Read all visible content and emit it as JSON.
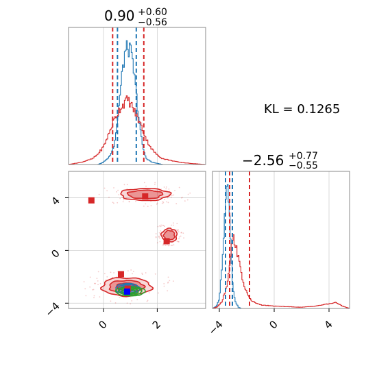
{
  "chart_data": {
    "type": "corner",
    "kl_text": "KL = 0.1265",
    "colors": {
      "red": "#d62728",
      "blue": "#1f77b4",
      "green": "#2ca02c",
      "grid": "#d0d0d0",
      "frame": "#888888"
    },
    "panels": [
      {
        "id": "hist-x",
        "type": "histogram",
        "title": {
          "value": "0.90",
          "plus": "+0.60",
          "minus": "−0.56"
        },
        "xlim": [
          -1.3,
          3.8
        ],
        "grid_x": [
          0,
          2
        ],
        "series": [
          {
            "name": "",
            "color": "#1f77b4",
            "x": [
              -1.3,
              -0.2,
              0.0,
              0.2,
              0.4,
              0.5,
              0.6,
              0.7,
              0.8,
              0.9,
              1.0,
              1.1,
              1.2,
              1.3,
              1.4,
              1.5,
              1.6,
              1.8,
              2.0,
              2.2,
              3.8
            ],
            "density": [
              0,
              0,
              0.02,
              0.06,
              0.16,
              0.33,
              0.55,
              0.78,
              0.95,
              1.0,
              0.96,
              0.84,
              0.64,
              0.42,
              0.24,
              0.11,
              0.05,
              0.02,
              0.01,
              0,
              0
            ]
          },
          {
            "name": "",
            "color": "#d62728",
            "x": [
              -1.3,
              -0.8,
              -0.4,
              -0.2,
              0.0,
              0.2,
              0.4,
              0.6,
              0.8,
              0.9,
              1.0,
              1.2,
              1.4,
              1.6,
              1.8,
              2.0,
              2.2,
              2.4,
              2.8,
              3.2,
              3.8
            ],
            "density": [
              0,
              0.02,
              0.05,
              0.09,
              0.15,
              0.26,
              0.38,
              0.47,
              0.53,
              0.55,
              0.52,
              0.43,
              0.33,
              0.21,
              0.13,
              0.08,
              0.05,
              0.04,
              0.02,
              0.01,
              0
            ]
          }
        ],
        "quantiles": {
          "blue": [
            0.52,
            1.22
          ],
          "red": [
            0.34,
            1.5
          ]
        }
      },
      {
        "id": "hist-y",
        "type": "histogram",
        "title": {
          "value": "−2.56",
          "plus": "+0.77",
          "minus": "−0.55"
        },
        "xlim": [
          -4.5,
          5.5
        ],
        "grid_x": [
          -4,
          0,
          4
        ],
        "ticks": [
          "−4",
          "0",
          "4"
        ],
        "series": [
          {
            "name": "",
            "color": "#1f77b4",
            "x": [
              -4.5,
              -4.2,
              -4.0,
              -3.8,
              -3.6,
              -3.5,
              -3.4,
              -3.3,
              -3.2,
              -3.1,
              -3.0,
              -2.8,
              -2.6,
              -2.4,
              5.5
            ],
            "density": [
              0,
              0.02,
              0.08,
              0.35,
              0.78,
              0.98,
              1.0,
              0.88,
              0.62,
              0.36,
              0.16,
              0.05,
              0.01,
              0,
              0
            ]
          },
          {
            "name": "",
            "color": "#d62728",
            "x": [
              -4.5,
              -4.2,
              -3.8,
              -3.4,
              -3.2,
              -3.0,
              -2.8,
              -2.6,
              -2.4,
              -2.2,
              -2.0,
              -1.6,
              -1.0,
              0.0,
              2.0,
              3.0,
              4.0,
              4.5,
              5.0,
              5.5
            ],
            "density": [
              0,
              0.01,
              0.06,
              0.22,
              0.45,
              0.6,
              0.55,
              0.42,
              0.3,
              0.2,
              0.13,
              0.06,
              0.03,
              0.02,
              0.01,
              0.02,
              0.04,
              0.05,
              0.02,
              0
            ]
          }
        ],
        "quantiles": {
          "blue": [
            -3.55,
            -3.05
          ],
          "red": [
            -3.25,
            -1.8
          ]
        }
      },
      {
        "id": "scatter-xy",
        "type": "contour",
        "xlim": [
          -1.3,
          3.8
        ],
        "ylim": [
          -4.4,
          6.0
        ],
        "grid_x": [
          0,
          2
        ],
        "grid_y": [
          -4,
          0,
          4
        ],
        "x_ticks": [
          "0",
          "2"
        ],
        "y_ticks": [
          "−4",
          "0",
          "4"
        ],
        "red_points": [
          {
            "x": -0.45,
            "y": 3.8
          },
          {
            "x": 1.55,
            "y": 4.1
          },
          {
            "x": 2.35,
            "y": 0.7
          },
          {
            "x": 0.65,
            "y": -1.8
          },
          {
            "x": 0.9,
            "y": -2.9
          }
        ],
        "blue_points": [
          {
            "x": 0.88,
            "y": -3.12
          }
        ],
        "red_modes": [
          {
            "x": 0.85,
            "y": -2.75,
            "sx": 0.8,
            "sy": 0.6,
            "level": 3
          },
          {
            "x": 1.55,
            "y": 4.25,
            "sx": 0.8,
            "sy": 0.4,
            "level": 2
          },
          {
            "x": 2.45,
            "y": 1.15,
            "sx": 0.25,
            "sy": 0.45,
            "level": 2
          }
        ],
        "blue_mode": {
          "x": 0.9,
          "y": -2.9,
          "sx": 0.45,
          "sy": 0.4
        },
        "green_mode": {
          "x": 1.0,
          "y": -3.1,
          "sx": 0.55,
          "sy": 0.35
        }
      }
    ]
  }
}
